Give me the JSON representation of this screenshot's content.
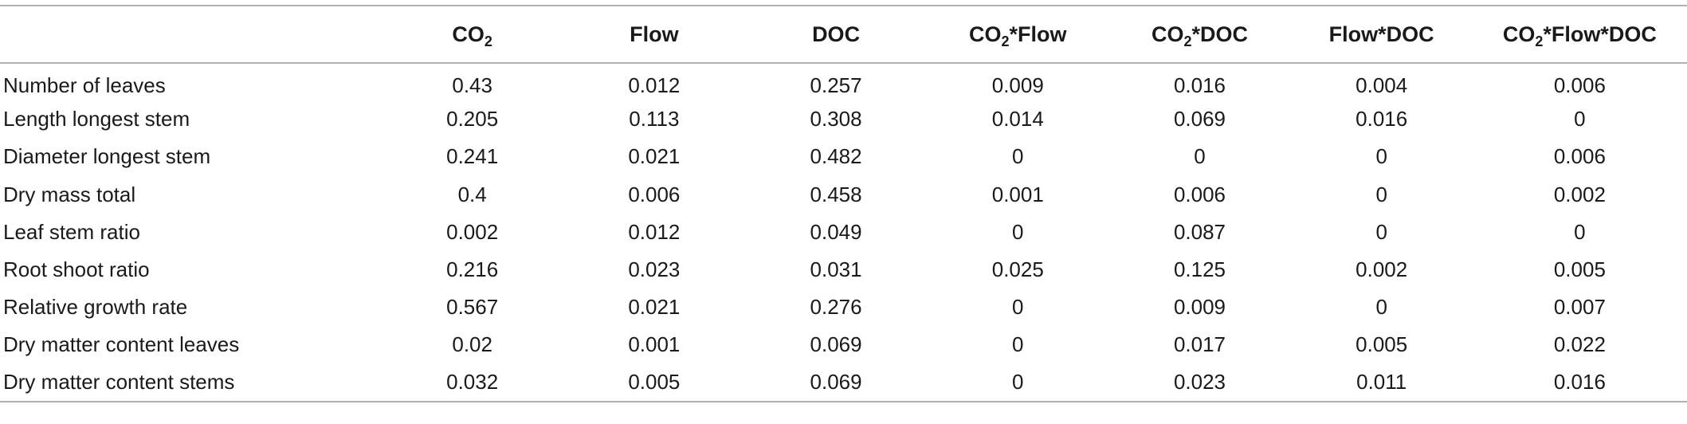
{
  "table": {
    "columns": [
      {
        "main": "CO",
        "sub": "2",
        "suffix": ""
      },
      {
        "main": "Flow",
        "sub": "",
        "suffix": ""
      },
      {
        "main": "DOC",
        "sub": "",
        "suffix": ""
      },
      {
        "main": "CO",
        "sub": "2",
        "suffix": "*Flow"
      },
      {
        "main": "CO",
        "sub": "2",
        "suffix": "*DOC"
      },
      {
        "main": "Flow*DOC",
        "sub": "",
        "suffix": ""
      },
      {
        "main": "CO",
        "sub": "2",
        "suffix": "*Flow*DOC"
      }
    ],
    "rows": [
      {
        "label": "Number of leaves",
        "values": [
          "0.43",
          "0.012",
          "0.257",
          "0.009",
          "0.016",
          "0.004",
          "0.006"
        ]
      },
      {
        "label": "Length longest stem",
        "values": [
          "0.205",
          "0.113",
          "0.308",
          "0.014",
          "0.069",
          "0.016",
          "0"
        ]
      },
      {
        "label": "Diameter longest stem",
        "values": [
          "0.241",
          "0.021",
          "0.482",
          "0",
          "0",
          "0",
          "0.006"
        ]
      },
      {
        "label": "Dry mass total",
        "values": [
          "0.4",
          "0.006",
          "0.458",
          "0.001",
          "0.006",
          "0",
          "0.002"
        ]
      },
      {
        "label": "Leaf stem ratio",
        "values": [
          "0.002",
          "0.012",
          "0.049",
          "0",
          "0.087",
          "0",
          "0"
        ]
      },
      {
        "label": "Root shoot ratio",
        "values": [
          "0.216",
          "0.023",
          "0.031",
          "0.025",
          "0.125",
          "0.002",
          "0.005"
        ]
      },
      {
        "label": "Relative growth rate",
        "values": [
          "0.567",
          "0.021",
          "0.276",
          "0",
          "0.009",
          "0",
          "0.007"
        ]
      },
      {
        "label": "Dry matter content leaves",
        "values": [
          "0.02",
          "0.001",
          "0.069",
          "0",
          "0.017",
          "0.005",
          "0.022"
        ]
      },
      {
        "label": "Dry matter content stems",
        "values": [
          "0.032",
          "0.005",
          "0.069",
          "0",
          "0.023",
          "0.011",
          "0.016"
        ]
      }
    ]
  }
}
